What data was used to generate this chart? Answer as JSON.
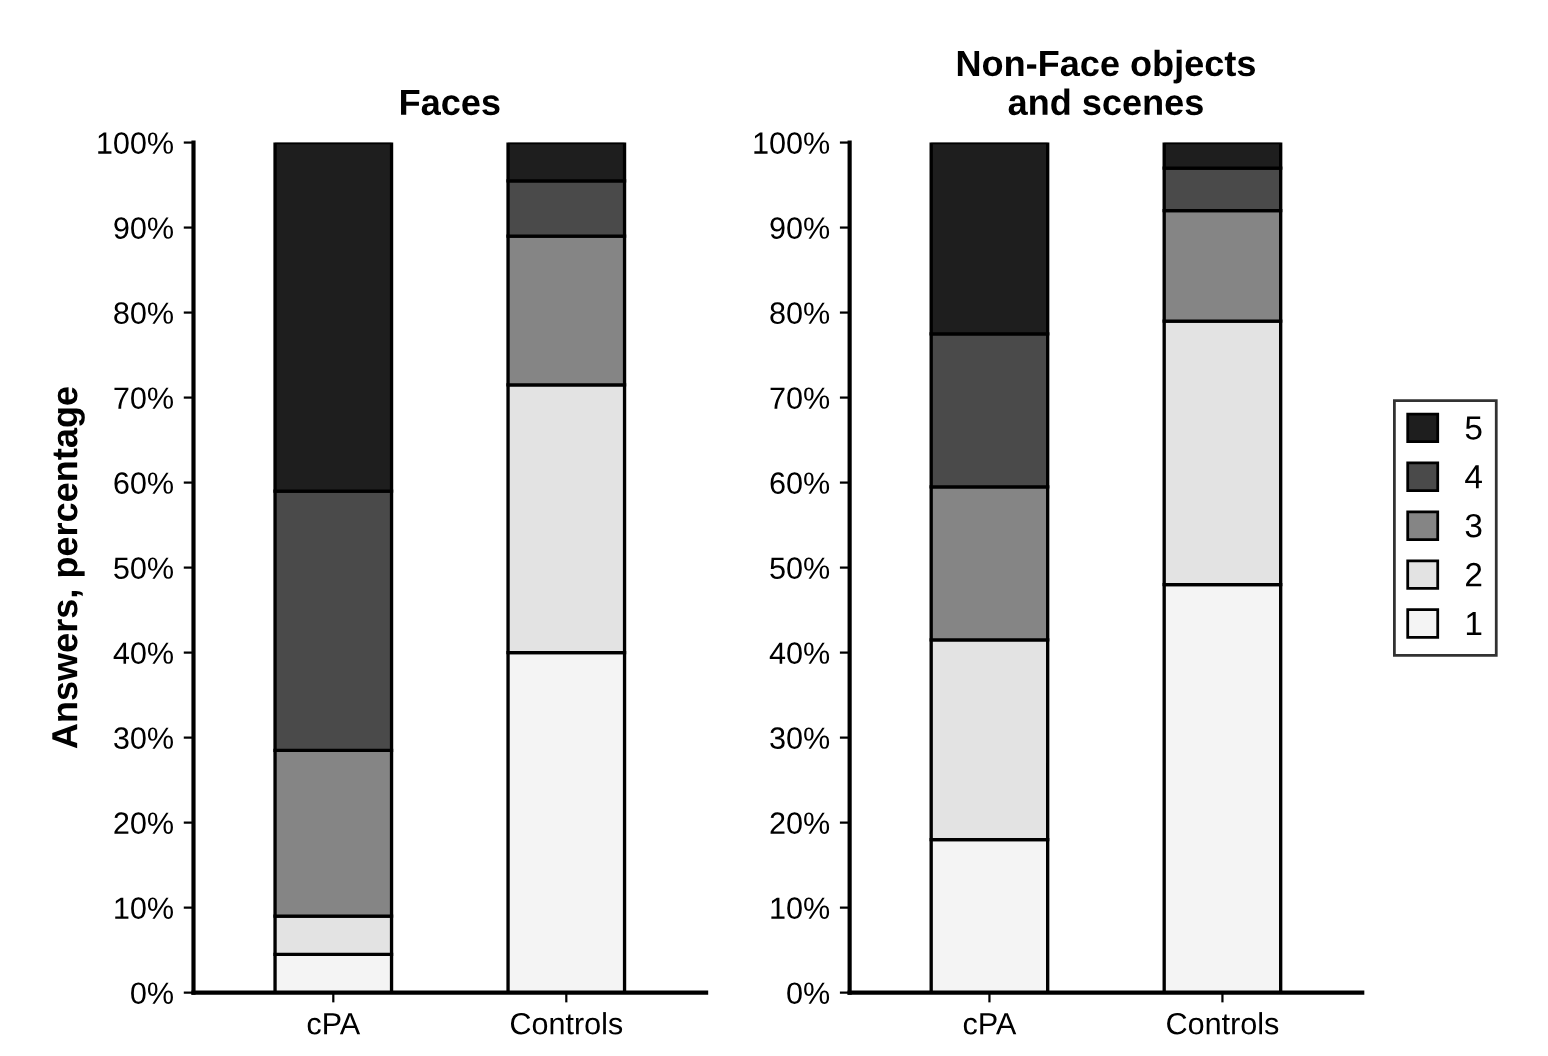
{
  "chart_data": [
    {
      "type": "bar",
      "stacked": true,
      "title": "Faces",
      "ylabel": "Answers, percentage",
      "categories": [
        "cPA",
        "Controls"
      ],
      "series": [
        {
          "name": "1",
          "color": "#f4f4f4",
          "values": [
            4.5,
            40
          ]
        },
        {
          "name": "2",
          "color": "#e3e3e3",
          "values": [
            4.5,
            31.5
          ]
        },
        {
          "name": "3",
          "color": "#858585",
          "values": [
            19.5,
            17.5
          ]
        },
        {
          "name": "4",
          "color": "#4a4a4a",
          "values": [
            30.5,
            6.5
          ]
        },
        {
          "name": "5",
          "color": "#1e1e1e",
          "values": [
            41,
            4.5
          ]
        }
      ],
      "ylim": [
        0,
        100
      ],
      "yticks": [
        {
          "value": 0,
          "label": "0%"
        },
        {
          "value": 10,
          "label": "10%"
        },
        {
          "value": 20,
          "label": "20%"
        },
        {
          "value": 30,
          "label": "30%"
        },
        {
          "value": 40,
          "label": "40%"
        },
        {
          "value": 50,
          "label": "50%"
        },
        {
          "value": 60,
          "label": "60%"
        },
        {
          "value": 70,
          "label": "70%"
        },
        {
          "value": 80,
          "label": "80%"
        },
        {
          "value": 90,
          "label": "90%"
        },
        {
          "value": 100,
          "label": "100%"
        }
      ],
      "grid": false,
      "legend": "right"
    },
    {
      "type": "bar",
      "stacked": true,
      "title": "Non-Face objects\nand scenes",
      "categories": [
        "cPA",
        "Controls"
      ],
      "series": [
        {
          "name": "1",
          "color": "#f4f4f4",
          "values": [
            18,
            48
          ]
        },
        {
          "name": "2",
          "color": "#e3e3e3",
          "values": [
            23.5,
            31
          ]
        },
        {
          "name": "3",
          "color": "#858585",
          "values": [
            18,
            13
          ]
        },
        {
          "name": "4",
          "color": "#4a4a4a",
          "values": [
            18,
            5
          ]
        },
        {
          "name": "5",
          "color": "#1e1e1e",
          "values": [
            22.5,
            3
          ]
        }
      ],
      "ylim": [
        0,
        100
      ],
      "yticks": [
        {
          "value": 0,
          "label": "0%"
        },
        {
          "value": 10,
          "label": "10%"
        },
        {
          "value": 20,
          "label": "20%"
        },
        {
          "value": 30,
          "label": "30%"
        },
        {
          "value": 40,
          "label": "40%"
        },
        {
          "value": 50,
          "label": "50%"
        },
        {
          "value": 60,
          "label": "60%"
        },
        {
          "value": 70,
          "label": "70%"
        },
        {
          "value": 80,
          "label": "80%"
        },
        {
          "value": 90,
          "label": "90%"
        },
        {
          "value": 100,
          "label": "100%"
        }
      ],
      "grid": false
    }
  ]
}
